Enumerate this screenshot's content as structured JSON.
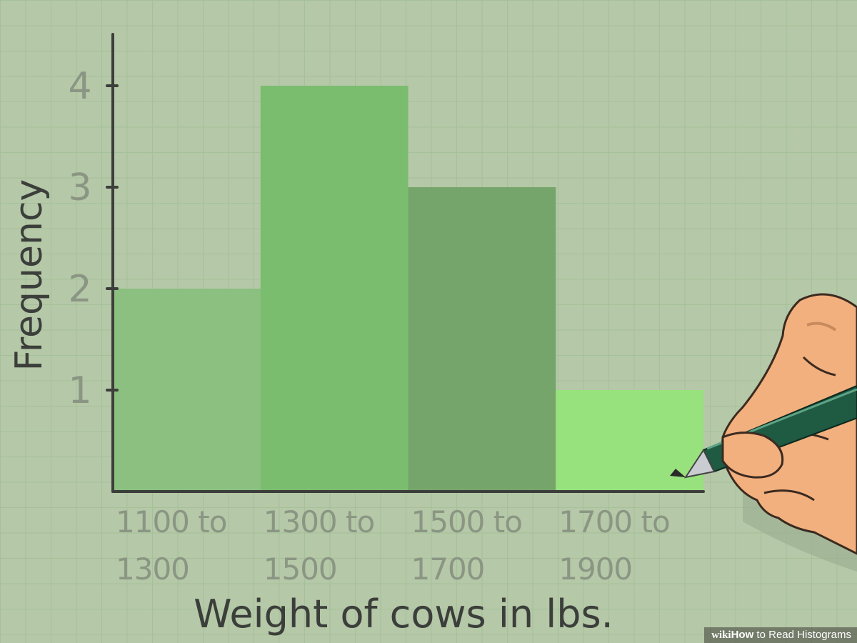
{
  "chart_data": {
    "type": "bar",
    "histogram": true,
    "title": "",
    "xlabel": "Weight of cows in lbs.",
    "ylabel": "Frequency",
    "categories": [
      "1100 to 1300",
      "1300 to 1500",
      "1500 to 1700",
      "1700 to 1900"
    ],
    "category_lines": [
      [
        "1100 to",
        "1300"
      ],
      [
        "1300 to",
        "1500"
      ],
      [
        "1500 to",
        "1700"
      ],
      [
        "1700 to",
        "1900"
      ]
    ],
    "values": [
      2,
      4,
      3,
      1
    ],
    "yticks": [
      1,
      2,
      3,
      4
    ],
    "ylim": [
      0,
      4.6
    ],
    "bar_colors": [
      "#8bc080",
      "#7bbd6e",
      "#76a56b",
      "#98e27d"
    ],
    "grid": true,
    "legend": "none"
  },
  "watermark": {
    "brand_wiki": "wiki",
    "brand_how": "How",
    "text": " to Read Histograms"
  },
  "colors": {
    "background": "#b5c8a7",
    "grid": "#a5c19a",
    "axis": "#3b3e3a"
  },
  "decorations": {
    "hand_icon": "hand-holding-pen-icon"
  }
}
